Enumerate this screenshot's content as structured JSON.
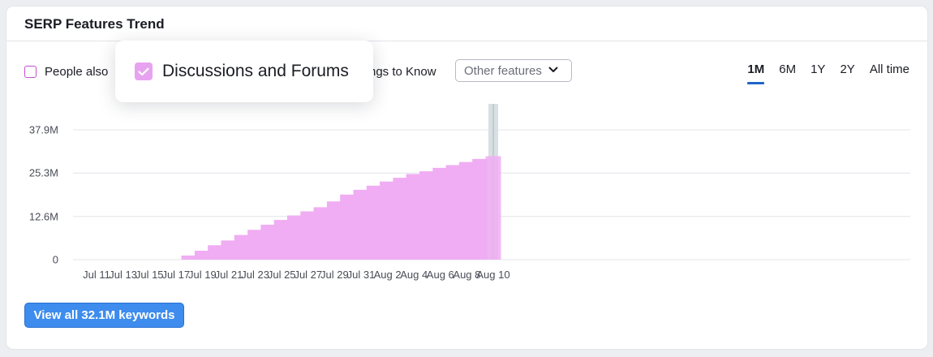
{
  "card": {
    "title": "SERP Features Trend"
  },
  "filters": {
    "people_also_label": "People also",
    "things_to_know_label": "ngs to Know",
    "other_features_label": "Other features"
  },
  "popup": {
    "label": "Discussions and Forums",
    "checked": true
  },
  "range_tabs": [
    {
      "label": "1M",
      "active": true
    },
    {
      "label": "6M",
      "active": false
    },
    {
      "label": "1Y",
      "active": false
    },
    {
      "label": "2Y",
      "active": false
    },
    {
      "label": "All time",
      "active": false
    }
  ],
  "cta": {
    "label": "View all 32.1M keywords"
  },
  "colors": {
    "bar": "#f0adf3",
    "accent": "#1f64c8",
    "button": "#3d8cee",
    "checkbox_border": "#c44fd1"
  },
  "chart_data": {
    "type": "bar",
    "title": "",
    "xlabel": "",
    "ylabel": "",
    "ylim": [
      0,
      37.9
    ],
    "y_unit": "M",
    "y_ticks": [
      "0",
      "12.6M",
      "25.3M",
      "37.9M"
    ],
    "y_tick_values": [
      0,
      12.6,
      25.3,
      37.9
    ],
    "x_tick_labels": [
      "Jul 11",
      "Jul 13",
      "Jul 15",
      "Jul 17",
      "Jul 19",
      "Jul 21",
      "Jul 23",
      "Jul 25",
      "Jul 27",
      "Jul 29",
      "Jul 31",
      "Aug 2",
      "Aug 4",
      "Aug 6",
      "Aug 8",
      "Aug 10"
    ],
    "grid": true,
    "highlighted_category": "Aug 10",
    "series": [
      {
        "name": "Discussions and Forums",
        "categories": [
          "Jul 18",
          "Jul 19",
          "Jul 20",
          "Jul 21",
          "Jul 22",
          "Jul 23",
          "Jul 24",
          "Jul 25",
          "Jul 26",
          "Jul 27",
          "Jul 28",
          "Jul 29",
          "Jul 30",
          "Jul 31",
          "Aug 1",
          "Aug 2",
          "Aug 3",
          "Aug 4",
          "Aug 5",
          "Aug 6",
          "Aug 7",
          "Aug 8",
          "Aug 9",
          "Aug 10"
        ],
        "values": [
          1.2,
          2.6,
          4.2,
          5.6,
          7.2,
          8.7,
          10.2,
          11.6,
          12.9,
          14.1,
          15.3,
          17.0,
          19.0,
          20.4,
          21.6,
          22.8,
          23.9,
          25.0,
          25.8,
          26.8,
          27.6,
          28.5,
          29.4,
          30.2
        ]
      }
    ]
  }
}
